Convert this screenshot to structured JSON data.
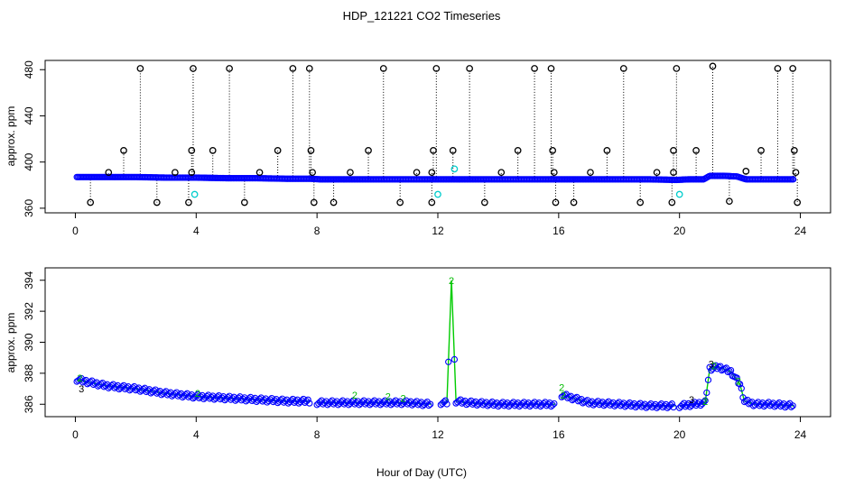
{
  "figure": {
    "title": "HDP_121221  CO2 Timeseries",
    "xlabel": "Hour of Day (UTC)"
  },
  "chart_data": [
    {
      "type": "scatter",
      "panel": "top",
      "ylabel": "approx. ppm",
      "xlim": [
        -1,
        25
      ],
      "ylim": [
        356,
        488
      ],
      "xticks": [
        0,
        4,
        8,
        12,
        16,
        20,
        24
      ],
      "yticks": [
        360,
        400,
        440,
        480
      ],
      "baseline_series": {
        "color": "#0000ff",
        "points": [
          [
            0.05,
            387
          ],
          [
            1.0,
            387
          ],
          [
            2.0,
            387
          ],
          [
            3.0,
            386.5
          ],
          [
            4.0,
            386.5
          ],
          [
            5.0,
            386
          ],
          [
            6.0,
            386
          ],
          [
            7.0,
            385.5
          ],
          [
            7.8,
            385.5
          ],
          [
            8.1,
            385
          ],
          [
            9.0,
            385
          ],
          [
            10.0,
            385
          ],
          [
            11.0,
            385
          ],
          [
            11.9,
            385
          ],
          [
            12.2,
            385
          ],
          [
            13.0,
            385
          ],
          [
            14.0,
            385
          ],
          [
            15.0,
            385
          ],
          [
            15.9,
            385
          ],
          [
            16.1,
            385
          ],
          [
            17.0,
            385
          ],
          [
            18.0,
            385
          ],
          [
            19.0,
            385
          ],
          [
            19.9,
            384.5
          ],
          [
            20.3,
            385
          ],
          [
            20.8,
            385
          ],
          [
            21.0,
            388
          ],
          [
            21.5,
            388
          ],
          [
            21.9,
            387.5
          ],
          [
            22.2,
            385
          ],
          [
            23.0,
            385
          ],
          [
            23.8,
            385
          ]
        ]
      },
      "black_outliers": [
        [
          0.5,
          365
        ],
        [
          1.1,
          391
        ],
        [
          1.6,
          410
        ],
        [
          2.15,
          481
        ],
        [
          2.7,
          365
        ],
        [
          3.3,
          391
        ],
        [
          3.75,
          365
        ],
        [
          3.85,
          410
        ],
        [
          3.9,
          481
        ],
        [
          3.85,
          391
        ],
        [
          4.55,
          410
        ],
        [
          5.1,
          481
        ],
        [
          5.6,
          365
        ],
        [
          6.1,
          391
        ],
        [
          6.7,
          410
        ],
        [
          7.2,
          481
        ],
        [
          7.75,
          481
        ],
        [
          7.8,
          410
        ],
        [
          7.85,
          391
        ],
        [
          7.9,
          365
        ],
        [
          8.55,
          365
        ],
        [
          9.1,
          391
        ],
        [
          9.7,
          410
        ],
        [
          10.2,
          481
        ],
        [
          10.75,
          365
        ],
        [
          11.3,
          391
        ],
        [
          11.8,
          365
        ],
        [
          11.85,
          410
        ],
        [
          11.95,
          481
        ],
        [
          11.8,
          391
        ],
        [
          12.5,
          410
        ],
        [
          13.05,
          481
        ],
        [
          13.55,
          365
        ],
        [
          14.1,
          391
        ],
        [
          14.65,
          410
        ],
        [
          15.2,
          481
        ],
        [
          15.75,
          481
        ],
        [
          15.8,
          410
        ],
        [
          15.85,
          391
        ],
        [
          15.9,
          365
        ],
        [
          16.5,
          365
        ],
        [
          17.05,
          391
        ],
        [
          17.6,
          410
        ],
        [
          18.15,
          481
        ],
        [
          18.7,
          365
        ],
        [
          19.25,
          391
        ],
        [
          19.75,
          365
        ],
        [
          19.8,
          410
        ],
        [
          19.9,
          481
        ],
        [
          19.8,
          391
        ],
        [
          20.55,
          410
        ],
        [
          21.1,
          483
        ],
        [
          21.65,
          366
        ],
        [
          22.2,
          392
        ],
        [
          22.7,
          410
        ],
        [
          23.25,
          481
        ],
        [
          23.75,
          481
        ],
        [
          23.8,
          410
        ],
        [
          23.85,
          391
        ],
        [
          23.9,
          365
        ]
      ],
      "cyan_points": [
        [
          3.95,
          372
        ],
        [
          12.0,
          372
        ],
        [
          20.0,
          372
        ],
        [
          12.55,
          394
        ]
      ]
    },
    {
      "type": "scatter",
      "panel": "bottom",
      "ylabel": "approx. ppm",
      "xlim": [
        -1,
        25
      ],
      "ylim": [
        385.2,
        394.8
      ],
      "xticks": [
        0,
        4,
        8,
        12,
        16,
        20,
        24
      ],
      "yticks": [
        386,
        388,
        390,
        392,
        394
      ],
      "series_color": "#0000ff",
      "line_color": "#00cc00",
      "segments": [
        [
          [
            0.05,
            387.6
          ],
          [
            0.5,
            387.4
          ],
          [
            1.0,
            387.2
          ],
          [
            2.0,
            387.0
          ],
          [
            3.0,
            386.7
          ],
          [
            4.0,
            386.5
          ],
          [
            5.0,
            386.4
          ],
          [
            6.0,
            386.3
          ],
          [
            7.0,
            386.2
          ],
          [
            7.75,
            386.2
          ]
        ],
        [
          [
            8.0,
            386.1
          ],
          [
            9.0,
            386.1
          ],
          [
            10.0,
            386.1
          ],
          [
            11.0,
            386.1
          ],
          [
            11.8,
            386.0
          ]
        ],
        [
          [
            12.1,
            386.1
          ],
          [
            12.3,
            386.1
          ],
          [
            12.45,
            394.0
          ],
          [
            12.6,
            386.2
          ],
          [
            13.0,
            386.1
          ],
          [
            14.0,
            386.0
          ],
          [
            15.0,
            386.0
          ],
          [
            15.9,
            386.0
          ]
        ],
        [
          [
            16.1,
            386.6
          ],
          [
            17.0,
            386.1
          ],
          [
            18.0,
            386.0
          ],
          [
            19.0,
            385.9
          ],
          [
            19.85,
            385.9
          ]
        ],
        [
          [
            20.0,
            385.9
          ],
          [
            20.5,
            386.0
          ],
          [
            20.85,
            386.1
          ],
          [
            21.0,
            388.3
          ],
          [
            21.3,
            388.4
          ],
          [
            21.7,
            388.1
          ],
          [
            22.0,
            387.3
          ],
          [
            22.15,
            386.2
          ],
          [
            22.5,
            386.0
          ],
          [
            23.0,
            386.0
          ],
          [
            23.8,
            385.9
          ]
        ]
      ],
      "number_labels": [
        {
          "x": 12.45,
          "y": 394.0,
          "text": "2"
        },
        {
          "x": 16.1,
          "y": 387.1,
          "text": "2"
        },
        {
          "x": 16.15,
          "y": 386.6,
          "text": "2"
        },
        {
          "x": 9.25,
          "y": 386.6,
          "text": "2"
        },
        {
          "x": 10.35,
          "y": 386.5,
          "text": "2"
        },
        {
          "x": 10.85,
          "y": 386.4,
          "text": "2"
        },
        {
          "x": 20.4,
          "y": 386.3,
          "text": "3"
        },
        {
          "x": 21.05,
          "y": 388.6,
          "text": "3"
        },
        {
          "x": 21.15,
          "y": 388.5,
          "text": "2"
        },
        {
          "x": 21.95,
          "y": 387.5,
          "text": "2"
        },
        {
          "x": 0.15,
          "y": 387.7,
          "text": "2"
        },
        {
          "x": 0.2,
          "y": 387.0,
          "text": "3"
        },
        {
          "x": 4.05,
          "y": 386.7,
          "text": "2"
        },
        {
          "x": 20.85,
          "y": 386.2,
          "text": "2"
        }
      ]
    }
  ]
}
